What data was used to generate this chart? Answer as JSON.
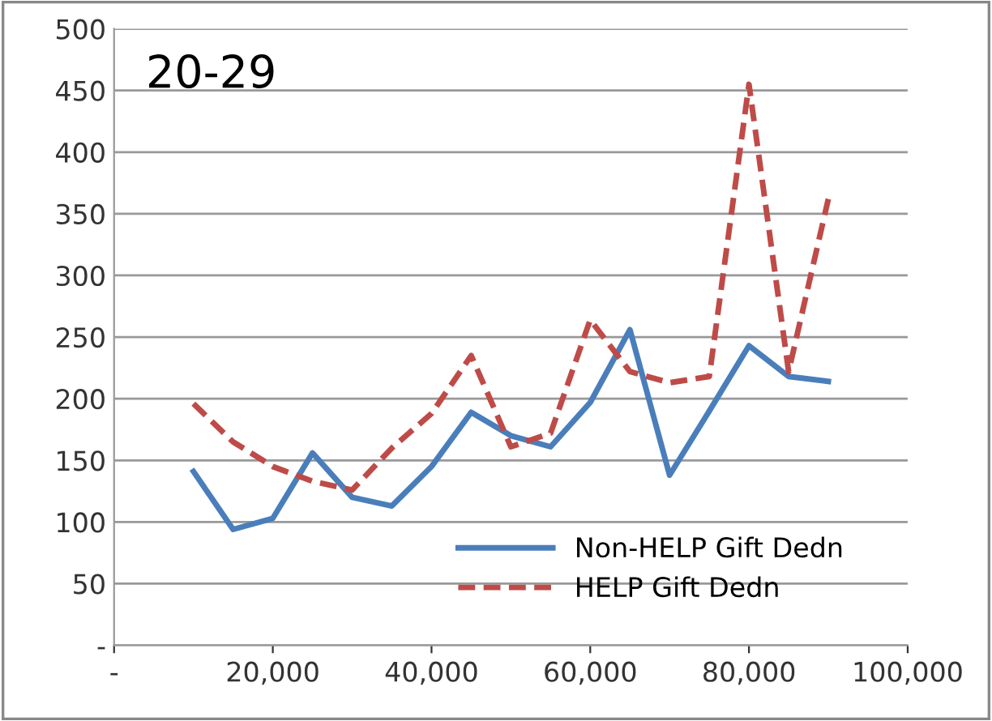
{
  "chart_data": {
    "type": "line",
    "title": "20-29",
    "x": [
      10000,
      15000,
      20000,
      25000,
      30000,
      35000,
      40000,
      45000,
      50000,
      55000,
      60000,
      65000,
      70000,
      75000,
      80000,
      85000,
      90000
    ],
    "series": [
      {
        "name": "Non-HELP Gift Dedn",
        "color": "#4a7ebb",
        "line_style": "solid",
        "values": [
          141,
          94,
          103,
          156,
          120,
          113,
          145,
          189,
          170,
          161,
          197,
          256,
          138,
          190,
          243,
          218,
          214
        ]
      },
      {
        "name": "HELP Gift Dedn",
        "color": "#be4b48",
        "line_style": "dashed",
        "values": [
          196,
          165,
          145,
          133,
          126,
          160,
          188,
          235,
          161,
          172,
          264,
          222,
          213,
          218,
          455,
          222,
          362
        ]
      }
    ],
    "xlim": [
      0,
      100000
    ],
    "xticks": [
      {
        "value": 0,
        "label": "-"
      },
      {
        "value": 20000,
        "label": "20,000"
      },
      {
        "value": 40000,
        "label": "40,000"
      },
      {
        "value": 60000,
        "label": "60,000"
      },
      {
        "value": 80000,
        "label": "80,000"
      },
      {
        "value": 100000,
        "label": "100,000"
      }
    ],
    "ylim": [
      0,
      500
    ],
    "yticks": [
      {
        "value": 0,
        "label": "-"
      },
      50,
      100,
      150,
      200,
      250,
      300,
      350,
      400,
      450,
      500
    ],
    "grid": "y",
    "legend": "bottom right",
    "marker": "none"
  }
}
